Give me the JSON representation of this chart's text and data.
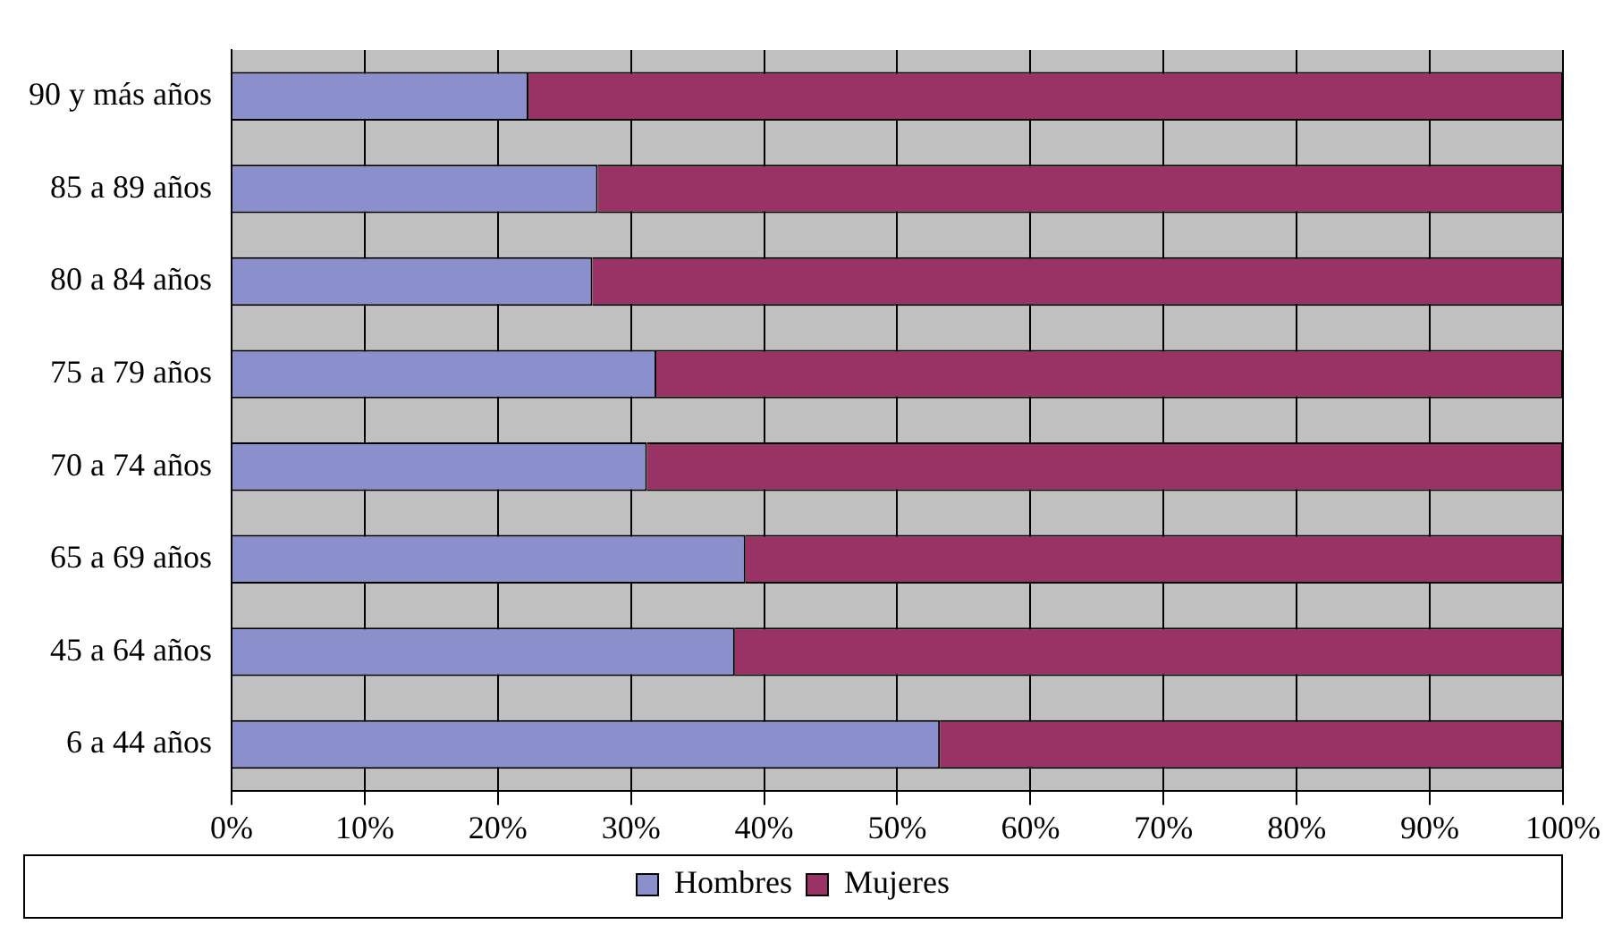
{
  "chart_data": {
    "type": "bar",
    "orientation": "horizontal",
    "stacked": true,
    "categories": [
      "90 y más años",
      "85 a 89 años",
      "80 a 84 años",
      "75 a 79 años",
      "70 a 74 años",
      "65 a 69 años",
      "45 a 64 años",
      "6 a 44 años"
    ],
    "series": [
      {
        "name": "Hombres",
        "color": "#8b8fcc",
        "values": [
          22.3,
          27.5,
          27.1,
          31.9,
          31.2,
          38.6,
          37.8,
          53.2
        ]
      },
      {
        "name": "Mujeres",
        "color": "#993366",
        "values": [
          77.7,
          72.5,
          72.9,
          68.1,
          68.8,
          61.4,
          62.2,
          46.8
        ]
      }
    ],
    "xlim": [
      0,
      100
    ],
    "xticks": [
      {
        "value": 0,
        "label": "0%"
      },
      {
        "value": 10,
        "label": "10%"
      },
      {
        "value": 20,
        "label": "20%"
      },
      {
        "value": 30,
        "label": "30%"
      },
      {
        "value": 40,
        "label": "40%"
      },
      {
        "value": 50,
        "label": "50%"
      },
      {
        "value": 60,
        "label": "60%"
      },
      {
        "value": 70,
        "label": "70%"
      },
      {
        "value": 80,
        "label": "80%"
      },
      {
        "value": 90,
        "label": "90%"
      },
      {
        "value": 100,
        "label": "100%"
      }
    ],
    "grid": "x",
    "legend": "bottom"
  }
}
